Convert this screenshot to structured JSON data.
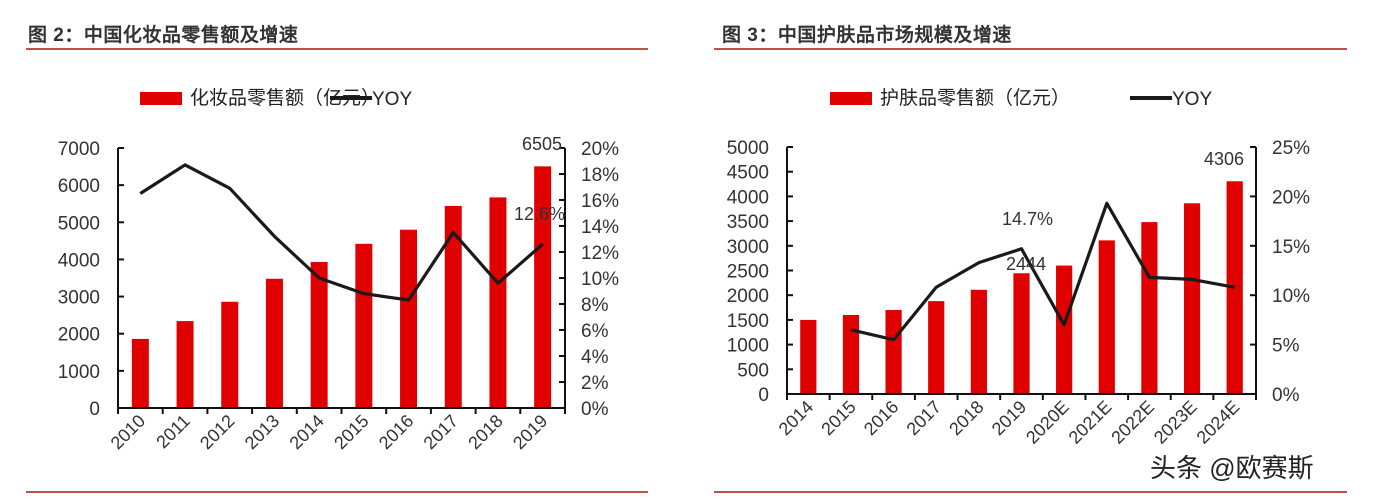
{
  "colors": {
    "bar": "#e00000",
    "line": "#1a1a1a",
    "rule": "#c0504d",
    "axis": "#111111"
  },
  "watermark": "头条 @欧赛斯",
  "chart_data": [
    {
      "type": "bar+line",
      "title": "图 2：中国化妆品零售额及增速",
      "legend": [
        "化妆品零售额（亿元）",
        "YOY"
      ],
      "legend_position": "top",
      "categories": [
        "2010",
        "2011",
        "2012",
        "2013",
        "2014",
        "2015",
        "2016",
        "2017",
        "2018",
        "2019"
      ],
      "series": [
        {
          "name": "化妆品零售额（亿元）",
          "type": "bar",
          "axis": "left",
          "values": [
            1860,
            2340,
            2860,
            3480,
            3930,
            4420,
            4800,
            5440,
            5670,
            6505
          ]
        },
        {
          "name": "YOY",
          "type": "line",
          "axis": "right",
          "values": [
            16.5,
            18.7,
            16.9,
            13.2,
            10.0,
            8.8,
            8.3,
            13.5,
            9.6,
            12.6
          ]
        }
      ],
      "annotations": [
        {
          "text": "6505",
          "at": "2019 bar"
        },
        {
          "text": "12.6%",
          "at": "2019 YOY"
        }
      ],
      "ylim_left": [
        0,
        7000
      ],
      "yticks_left": [
        "0",
        "1000",
        "2000",
        "3000",
        "4000",
        "5000",
        "6000",
        "7000"
      ],
      "ylim_right": [
        0,
        20
      ],
      "yticks_right": [
        "0%",
        "2%",
        "4%",
        "6%",
        "8%",
        "10%",
        "12%",
        "14%",
        "16%",
        "18%",
        "20%"
      ],
      "grid": false
    },
    {
      "type": "bar+line",
      "title": "图 3：中国护肤品市场规模及增速",
      "legend": [
        "护肤品零售额（亿元）",
        "YOY"
      ],
      "legend_position": "top",
      "categories": [
        "2014",
        "2015",
        "2016",
        "2017",
        "2018",
        "2019",
        "2020E",
        "2021E",
        "2022E",
        "2023E",
        "2024E"
      ],
      "series": [
        {
          "name": "护肤品零售额（亿元）",
          "type": "bar",
          "axis": "left",
          "values": [
            1500,
            1600,
            1700,
            1880,
            2110,
            2444,
            2600,
            3110,
            3480,
            3860,
            4306
          ]
        },
        {
          "name": "YOY",
          "type": "line",
          "axis": "right",
          "values": [
            null,
            6.5,
            5.5,
            10.8,
            13.3,
            14.7,
            7.0,
            19.3,
            11.8,
            11.6,
            10.8
          ]
        }
      ],
      "annotations": [
        {
          "text": "4306",
          "at": "2024E bar"
        },
        {
          "text": "14.7%",
          "at": "2019 YOY"
        },
        {
          "text": "2444",
          "at": "2019 bar"
        }
      ],
      "ylim_left": [
        0,
        5000
      ],
      "yticks_left": [
        "0",
        "500",
        "1000",
        "1500",
        "2000",
        "2500",
        "3000",
        "3500",
        "4000",
        "4500",
        "5000"
      ],
      "ylim_right": [
        0,
        25
      ],
      "yticks_right": [
        "0%",
        "5%",
        "10%",
        "15%",
        "20%",
        "25%"
      ],
      "grid": false
    }
  ]
}
